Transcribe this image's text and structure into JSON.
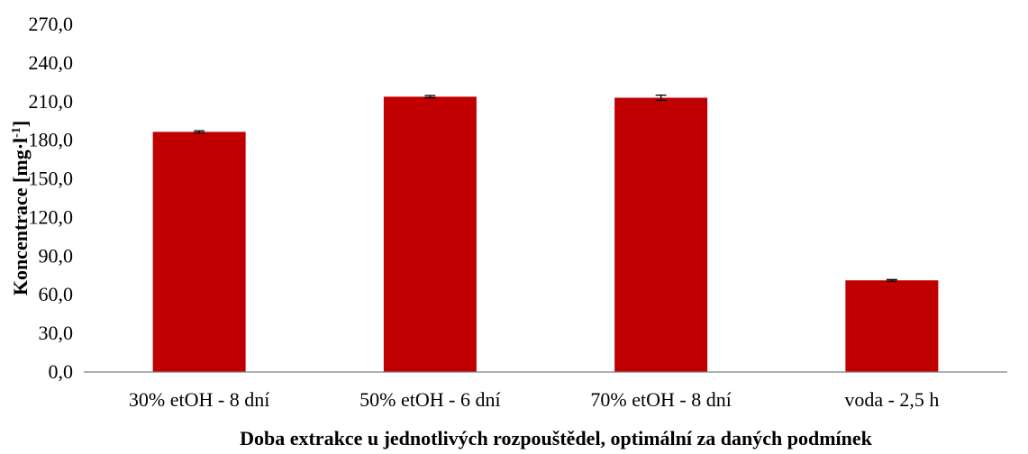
{
  "chart_data": {
    "type": "bar",
    "categories": [
      "30% etOH - 8 dní",
      "50% etOH - 6 dní",
      "70% etOH - 8 dní",
      "voda - 2,5 h"
    ],
    "values": [
      186.5,
      213.8,
      213.0,
      71.2
    ],
    "errors": [
      0.8,
      0.9,
      2.0,
      0.6
    ],
    "ylim": [
      0,
      270
    ],
    "yticks": [
      "0,0",
      "30,0",
      "60,0",
      "90,0",
      "120,0",
      "150,0",
      "180,0",
      "210,0",
      "240,0",
      "270,0"
    ],
    "ytick_values": [
      0,
      30,
      60,
      90,
      120,
      150,
      180,
      210,
      240,
      270
    ],
    "xlabel": "Doba extrakce u jednotlivých rozpouštědel, optimální za daných podmínek",
    "ylabel_main": "Koncentrace [mg·l",
    "ylabel_sup": "-1",
    "ylabel_end": "]",
    "bar_color": "#C00000",
    "grid": false,
    "legend": "none"
  }
}
